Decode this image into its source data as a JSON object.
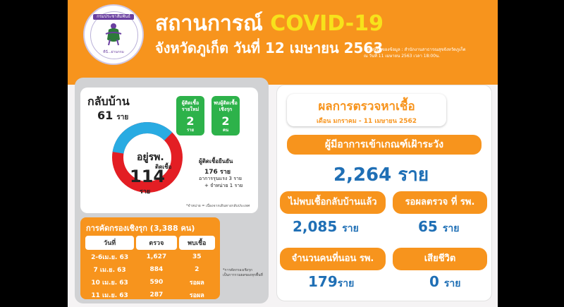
{
  "header": {
    "title_thai": "สถานการณ์",
    "title_covid": "COVID-19",
    "subtitle": "จังหวัดภูเก็ต วันที่ 12 เมษายน 2563",
    "source_line1": "แหล่งที่มาของข้อมูล : สำนักงานสาธารณสุขจังหวัดภูเก็ต",
    "source_line2": "ณ วันที่ 11 เมษายน 2563 เวลา 18:00น."
  },
  "logo": {
    "top_text": "กรมประชาสัมพันธ์",
    "bottom_text": "ที่นี่...ผ่านกรมประชาสัมพันธ์ครบทุกมิติ"
  },
  "cases": {
    "home_label": "กลับบ้าน",
    "home_value": "61",
    "home_unit": "ราย",
    "hospital_label": "อยู่รพ.",
    "infected_label": "ติดเชื้อ",
    "total_value": "114",
    "total_unit": "ราย",
    "new_cases_label": "ผู้ติดเชื้อ\nรายใหม่",
    "new_cases_value": "2",
    "new_cases_unit": "ราย",
    "proactive_label": "พบผู้ติดเชื้อ\nเชิงรุก",
    "proactive_value": "2",
    "proactive_unit": "คน",
    "confirmed_label": "ผู้ติดเชื้อยืนยัน",
    "confirmed_value": "176 ราย",
    "severe_note": "อาการรุนแรง 3 ราย",
    "discharged_note": "+ จำหน่าย 1 ราย",
    "footnote": "*จำหน่าย = เนื่องจากเดินทางกลับประเทศ",
    "donut": {
      "home_fraction": 0.35
    },
    "colors": {
      "home": "#29abe2",
      "hospital": "#e31e24"
    }
  },
  "screening": {
    "title": "การคัดกรองเชิงรุก (3,388 คน)",
    "headers": [
      "วันที่",
      "ตรวจ",
      "พบเชื้อ"
    ],
    "rows": [
      [
        "2-6เม.ย. 63",
        "1,627",
        "35"
      ],
      [
        "7 เม.ย. 63",
        "884",
        "2"
      ],
      [
        "10 เม.ย. 63",
        "590",
        "รอผล"
      ],
      [
        "11 เม.ย. 63",
        "287",
        "รอผล"
      ]
    ],
    "note": "*การคัดกรองเชิงรุก เป็นการรวมผลของทุกพื้นที่"
  },
  "results": {
    "title": "ผลการตรวจหาเชื้อ",
    "period": "เดือน มกราคม - 11 เมษายน 2562",
    "surveillance_label": "ผู้มีอาการเข้าเกณฑ์เฝ้าระวัง",
    "surveillance_value": "2,264",
    "surveillance_unit": "ราย",
    "negative_label": "ไม่พบเชื้อกลับบ้านแล้ว",
    "negative_value": "2,085",
    "negative_unit": "ราย",
    "pending_label": "รอผลตรวจ ที่ รพ.",
    "pending_value": "65",
    "pending_unit": "ราย",
    "admitted_label": "จำนวนคนที่นอน รพ.",
    "admitted_value": "179",
    "admitted_unit": "ราย",
    "deaths_label": "เสียชีวิต",
    "deaths_value": "0",
    "deaths_unit": "ราย"
  }
}
